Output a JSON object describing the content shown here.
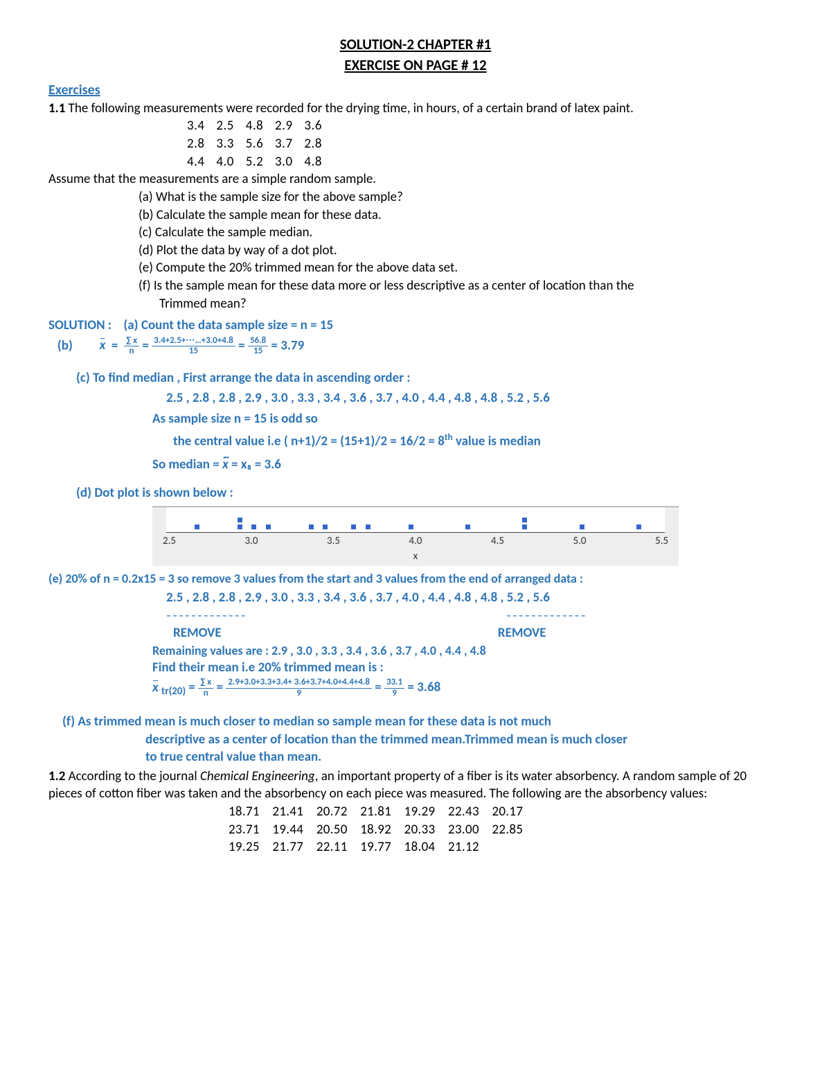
{
  "header": {
    "title1": "SOLUTION-2 CHAPTER #1",
    "title2": "EXERCISE ON PAGE # 12"
  },
  "exercises_label": "Exercises",
  "problem1": {
    "num": "1.1",
    "intro": " The following measurements were recorded for the drying time, in hours, of a certain brand of latex paint.",
    "data_rows": [
      "3.4  2.5  4.8  2.9  3.6",
      "2.8  3.3  5.6  3.7  2.8",
      "4.4  4.0  5.2  3.0  4.8"
    ],
    "assume": "Assume that the measurements are a simple random sample.",
    "parts": {
      "a": "(a) What is the sample size for the above sample?",
      "b": "(b) Calculate the sample mean for these data.",
      "c": "(c) Calculate the sample median.",
      "d": "(d) Plot the data by way of a dot plot.",
      "e": "(e) Compute the 20% trimmed mean for the above data set.",
      "f": "(f) Is the sample mean for these data more or less descriptive as a center of location than the",
      "f2": "Trimmed mean?"
    }
  },
  "solution1": {
    "label": "SOLUTION :",
    "a": "(a) Count  the data     sample size = n = 15",
    "b_label": "(b)",
    "b_formula": {
      "num1": "∑ x",
      "den1": "n",
      "num2": "3.4+2.5+⋯…+3.0+4.8",
      "den2": "15",
      "num3": "56.8",
      "den3": "15",
      "result": " = 3.79"
    },
    "c_intro": "(c) To find median , First arrange the data in ascending order :",
    "c_sorted": "2.5 , 2.8 , 2.8 , 2.9 , 3.0 , 3.3 , 3.4 , 3.6 , 3.7 , 4.0 , 4.4 , 4.8 , 4.8 , 5.2 , 5.6",
    "c_odd": "As sample size n = 15 is odd so",
    "c_central": "the central value i.e  ( n+1)/2 = (15+1)/2 = 16/2 = 8",
    "c_central_suffix": " value is median",
    "c_median_label": "So  median = ",
    "c_median_val": " = x₈ = 3.6",
    "d_label": "(d) Dot plot is shown below :",
    "dotplot": {
      "ticks": [
        "2.5",
        "3.0",
        "3.5",
        "4.0",
        "4.5",
        "5.0",
        "5.5"
      ],
      "xlabel": "x",
      "xmin": 2.3,
      "xmax": 5.8,
      "points": [
        {
          "x": 2.5,
          "stack": 1
        },
        {
          "x": 2.8,
          "stack": 1
        },
        {
          "x": 2.8,
          "stack": 2
        },
        {
          "x": 2.9,
          "stack": 1
        },
        {
          "x": 3.0,
          "stack": 1
        },
        {
          "x": 3.3,
          "stack": 1
        },
        {
          "x": 3.4,
          "stack": 1
        },
        {
          "x": 3.6,
          "stack": 1
        },
        {
          "x": 3.7,
          "stack": 1
        },
        {
          "x": 4.0,
          "stack": 1
        },
        {
          "x": 4.4,
          "stack": 1
        },
        {
          "x": 4.8,
          "stack": 1
        },
        {
          "x": 4.8,
          "stack": 2
        },
        {
          "x": 5.2,
          "stack": 1
        },
        {
          "x": 5.6,
          "stack": 1
        }
      ]
    },
    "e_intro": "(e) 20% of n = 0.2x15 = 3 so remove 3 values from the start and 3 values from the end of arranged data :",
    "e_sorted": "2.5 , 2.8 , 2.8 , 2.9 , 3.0 , 3.3 , 3.4 , 3.6 , 3.7 , 4.0 , 4.4 , 4.8 , 4.8 , 5.2 , 5.6",
    "e_dash": "–––––––––––––",
    "e_remove": "REMOVE",
    "e_remaining": "Remaining values are   :  2.9 , 3.0 , 3.3 , 3.4 , 3.6 , 3.7 , 4.0 , 4.4 , 4.8",
    "e_find": "Find their mean i.e 20% trimmed mean is :",
    "e_formula": {
      "sub": "tr(20)",
      "num1": "∑ x",
      "den1": "n",
      "num2": "2.9+3.0+3.3+3.4+ 3.6+3.7+4.0+4.4+4.8",
      "den2": "9",
      "num3": "33.1",
      "den3": "9",
      "result": " = 3.68"
    },
    "f1": "(f) As trimmed mean is much closer to median so sample mean for these data is not much",
    "f2": "descriptive as a center of location than the trimmed mean.Trimmed mean is much closer",
    "f3": "to true central value than mean."
  },
  "problem2": {
    "num": "1.2",
    "intro1": " According to the journal ",
    "journal": "Chemical Engineering",
    "intro2": ", an important property of a fiber is its water absorbency. A random sample of 20 pieces of cotton fiber was taken and the absorbency on each piece was measured. The following are the absorbency values:",
    "rows": [
      "18.71  21.41  20.72  21.81  19.29  22.43  20.17",
      "23.71  19.44  20.50  18.92  20.33  23.00  22.85",
      "19.25  21.77  22.11  19.77  18.04  21.12"
    ]
  }
}
